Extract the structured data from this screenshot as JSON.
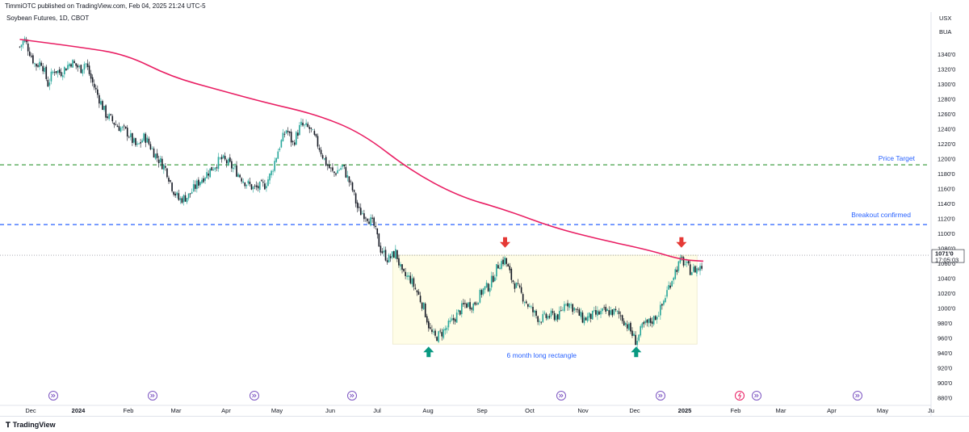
{
  "header": {
    "published_text": "TimmiOTC published on TradingView.com, Feb 04, 2025 21:24 UTC-5"
  },
  "symbol": {
    "title": "Soybean Futures, 1D, CBOT"
  },
  "price_axis": {
    "currency": "USX",
    "currency_sub": "BUA",
    "current_price_label": "1071'0",
    "countdown_label": "17:05:03"
  },
  "footer": {
    "logo_text": "TradingView"
  },
  "annotations": {
    "price_target": "Price Target",
    "breakout": "Breakout confirmed",
    "rectangle": "6 month long rectangle"
  },
  "colors": {
    "up": "#26a69a",
    "down": "#131722",
    "ma": "#e91e63",
    "target_line": "#43a047",
    "breakout_line": "#2962ff",
    "rectangle_fill": "#fffde7",
    "arrow_down": "#e53935",
    "arrow_up": "#089981",
    "event_icon": "#7e57c2"
  },
  "chart_data": {
    "type": "candlestick",
    "title": "Soybean Futures, 1D, CBOT",
    "y_ticks": [
      "1340'0",
      "1320'0",
      "1300'0",
      "1280'0",
      "1260'0",
      "1240'0",
      "1220'0",
      "1200'0",
      "1180'0",
      "1160'0",
      "1140'0",
      "1120'0",
      "1100'0",
      "1080'0",
      "1060'0",
      "1040'0",
      "1020'0",
      "1000'0",
      "980'0",
      "960'0",
      "940'0",
      "920'0",
      "900'0",
      "880'0"
    ],
    "x_ticks": [
      "Dec",
      "2024",
      "Feb",
      "Mar",
      "Apr",
      "May",
      "Jun",
      "Jul",
      "Aug",
      "Sep",
      "Oct",
      "Nov",
      "Dec",
      "2025",
      "Feb",
      "Mar",
      "Apr",
      "May",
      "Ju"
    ],
    "last_price": 1071.0,
    "horizontal_levels": [
      {
        "label": "Price Target",
        "price": 1192,
        "style": "dashed"
      },
      {
        "label": "Breakout confirmed",
        "price": 1112,
        "style": "dashed"
      }
    ],
    "rectangle": {
      "label": "6 month long rectangle",
      "price_top": 1071,
      "price_bottom": 952,
      "from": "2024-07-20",
      "to": "2025-01-31"
    },
    "markers": [
      {
        "type": "arrow-down",
        "date": "2024-09-30",
        "price": 1080
      },
      {
        "type": "arrow-down",
        "date": "2025-01-21",
        "price": 1080
      },
      {
        "type": "arrow-up",
        "date": "2024-08-12",
        "price": 940
      },
      {
        "type": "arrow-up",
        "date": "2024-12-23",
        "price": 940
      }
    ],
    "close_path": [
      [
        "2023-11-24",
        1350
      ],
      [
        "2023-11-27",
        1360
      ],
      [
        "2023-11-30",
        1345
      ],
      [
        "2023-12-04",
        1325
      ],
      [
        "2023-12-08",
        1330
      ],
      [
        "2023-12-12",
        1300
      ],
      [
        "2023-12-16",
        1320
      ],
      [
        "2023-12-20",
        1315
      ],
      [
        "2023-12-27",
        1330
      ],
      [
        "2024-01-02",
        1320
      ],
      [
        "2024-01-05",
        1330
      ],
      [
        "2024-01-09",
        1305
      ],
      [
        "2024-01-12",
        1290
      ],
      [
        "2024-01-18",
        1260
      ],
      [
        "2024-01-25",
        1245
      ],
      [
        "2024-02-01",
        1235
      ],
      [
        "2024-02-07",
        1215
      ],
      [
        "2024-02-12",
        1230
      ],
      [
        "2024-02-19",
        1205
      ],
      [
        "2024-02-26",
        1185
      ],
      [
        "2024-03-01",
        1160
      ],
      [
        "2024-03-05",
        1145
      ],
      [
        "2024-03-11",
        1150
      ],
      [
        "2024-03-18",
        1170
      ],
      [
        "2024-03-25",
        1185
      ],
      [
        "2024-04-01",
        1200
      ],
      [
        "2024-04-05",
        1195
      ],
      [
        "2024-04-10",
        1185
      ],
      [
        "2024-04-16",
        1170
      ],
      [
        "2024-04-22",
        1160
      ],
      [
        "2024-04-29",
        1165
      ],
      [
        "2024-05-03",
        1180
      ],
      [
        "2024-05-08",
        1215
      ],
      [
        "2024-05-13",
        1240
      ],
      [
        "2024-05-17",
        1220
      ],
      [
        "2024-05-22",
        1245
      ],
      [
        "2024-05-28",
        1240
      ],
      [
        "2024-06-03",
        1215
      ],
      [
        "2024-06-07",
        1195
      ],
      [
        "2024-06-12",
        1180
      ],
      [
        "2024-06-18",
        1190
      ],
      [
        "2024-06-24",
        1160
      ],
      [
        "2024-06-28",
        1130
      ],
      [
        "2024-07-03",
        1125
      ],
      [
        "2024-07-08",
        1110
      ],
      [
        "2024-07-12",
        1080
      ],
      [
        "2024-07-17",
        1065
      ],
      [
        "2024-07-22",
        1075
      ],
      [
        "2024-07-26",
        1045
      ],
      [
        "2024-07-31",
        1040
      ],
      [
        "2024-08-05",
        1020
      ],
      [
        "2024-08-09",
        1000
      ],
      [
        "2024-08-13",
        970
      ],
      [
        "2024-08-16",
        960
      ],
      [
        "2024-08-22",
        970
      ],
      [
        "2024-08-28",
        985
      ],
      [
        "2024-09-04",
        1005
      ],
      [
        "2024-09-10",
        1005
      ],
      [
        "2024-09-16",
        1025
      ],
      [
        "2024-09-20",
        1030
      ],
      [
        "2024-09-26",
        1060
      ],
      [
        "2024-09-30",
        1065
      ],
      [
        "2024-10-04",
        1040
      ],
      [
        "2024-10-10",
        1020
      ],
      [
        "2024-10-16",
        1000
      ],
      [
        "2024-10-22",
        985
      ],
      [
        "2024-10-29",
        990
      ],
      [
        "2024-11-04",
        990
      ],
      [
        "2024-11-08",
        1010
      ],
      [
        "2024-11-13",
        1000
      ],
      [
        "2024-11-19",
        985
      ],
      [
        "2024-11-25",
        990
      ],
      [
        "2024-12-02",
        995
      ],
      [
        "2024-12-09",
        995
      ],
      [
        "2024-12-13",
        990
      ],
      [
        "2024-12-18",
        975
      ],
      [
        "2024-12-23",
        955
      ],
      [
        "2024-12-27",
        975
      ],
      [
        "2025-01-03",
        985
      ],
      [
        "2025-01-08",
        1000
      ],
      [
        "2025-01-13",
        1030
      ],
      [
        "2025-01-17",
        1050
      ],
      [
        "2025-01-21",
        1065
      ],
      [
        "2025-01-27",
        1050
      ],
      [
        "2025-02-03",
        1055
      ],
      [
        "2025-02-04",
        1071
      ]
    ],
    "moving_average_path": [
      [
        "2023-11-24",
        1360
      ],
      [
        "2023-12-31",
        1350
      ],
      [
        "2024-01-31",
        1340
      ],
      [
        "2024-02-29",
        1310
      ],
      [
        "2024-03-31",
        1292
      ],
      [
        "2024-04-30",
        1275
      ],
      [
        "2024-05-31",
        1260
      ],
      [
        "2024-06-30",
        1235
      ],
      [
        "2024-07-31",
        1185
      ],
      [
        "2024-08-31",
        1150
      ],
      [
        "2024-09-30",
        1132
      ],
      [
        "2024-10-31",
        1108
      ],
      [
        "2024-11-30",
        1092
      ],
      [
        "2024-12-31",
        1078
      ],
      [
        "2025-01-21",
        1065
      ],
      [
        "2025-02-04",
        1063
      ]
    ]
  }
}
